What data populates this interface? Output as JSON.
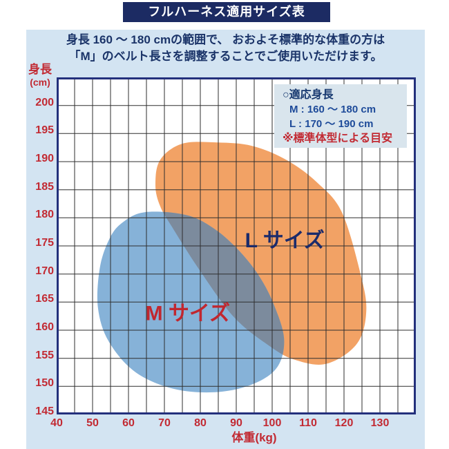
{
  "title": "フルハーネス適用サイズ表",
  "subtitle_line1": "身長 160 ～ 180 cmの範囲で、 おおよそ標準的な体重の方は",
  "subtitle_line2": "「M」のベルト長さを調整することでご使用いただけます。",
  "legend": {
    "heading": "○適応身長",
    "m_line": "M : 160 ～ 180 cm",
    "l_line": "L : 170 ～ 190 cm",
    "note": "※標準体型による目安"
  },
  "axes": {
    "y_title": "身長",
    "y_unit": "(cm)",
    "x_title": "体重(kg)"
  },
  "colors": {
    "page_bg": "#ffffff",
    "panel_bg": "#d3e4f2",
    "title_bar_bg": "#1c2b63",
    "title_text": "#ffffff",
    "navy_text": "#1a3368",
    "red_text": "#c22a33",
    "plot_bg": "#ffffff",
    "plot_border": "#23307c",
    "grid_line": "#2e2e2e",
    "legend_bg": "#d9e5ed",
    "legend_value_text": "#1d4a99",
    "m_region_fill": "#86b2d8",
    "l_region_fill": "#f2a265",
    "overlap_fill": "#7c8b9d"
  },
  "chart_data": {
    "type": "area",
    "title": "フルハーネス適用サイズ表",
    "xlabel": "体重(kg)",
    "ylabel": "身長(cm)",
    "grid": true,
    "x_axis": {
      "min": 40,
      "max": 140,
      "grid_step": 5,
      "ticks": [
        40,
        50,
        60,
        70,
        80,
        90,
        100,
        110,
        120,
        130
      ]
    },
    "y_axis": {
      "min": 145,
      "max": 205,
      "grid_step": 5,
      "ticks": [
        200,
        195,
        190,
        185,
        180,
        175,
        170,
        165,
        160,
        155,
        150,
        145
      ]
    },
    "overlap_color": "#7c8b9d",
    "regions": [
      {
        "id": "L",
        "label": "L サイズ",
        "height_range_cm": [
          170,
          190
        ],
        "fill": "#f2a265",
        "label_color": "#1b2b6b",
        "label_at": [
          103.5,
          176
        ],
        "points": [
          [
            84.8,
            193.4
          ],
          [
            94.4,
            192.8
          ],
          [
            104,
            190.3
          ],
          [
            112.5,
            186.3
          ],
          [
            119.4,
            181
          ],
          [
            124.6,
            170
          ],
          [
            126.2,
            163.3
          ],
          [
            123.5,
            157.5
          ],
          [
            115,
            154
          ],
          [
            106,
            154.8
          ],
          [
            99,
            157.3
          ],
          [
            89.4,
            162.3
          ],
          [
            80,
            170.5
          ],
          [
            72.1,
            178.4
          ],
          [
            68.8,
            182.1
          ],
          [
            67.5,
            185.8
          ],
          [
            68.8,
            190.3
          ],
          [
            75,
            193.2
          ]
        ]
      },
      {
        "id": "M",
        "label": "M サイズ",
        "height_range_cm": [
          160,
          180
        ],
        "fill": "#86b2d8",
        "label_color": "#c1272f",
        "label_at": [
          76.5,
          163
        ],
        "points": [
          [
            58,
            179
          ],
          [
            64.5,
            181
          ],
          [
            76,
            180.5
          ],
          [
            84,
            178
          ],
          [
            91,
            174
          ],
          [
            96.5,
            169.5
          ],
          [
            100.5,
            164.5
          ],
          [
            103.3,
            158.5
          ],
          [
            101.5,
            153.5
          ],
          [
            95,
            150.5
          ],
          [
            85,
            149
          ],
          [
            73,
            149.5
          ],
          [
            62,
            152.5
          ],
          [
            54.5,
            158
          ],
          [
            51.5,
            164
          ],
          [
            52,
            171
          ],
          [
            54.5,
            176
          ]
        ]
      }
    ]
  }
}
